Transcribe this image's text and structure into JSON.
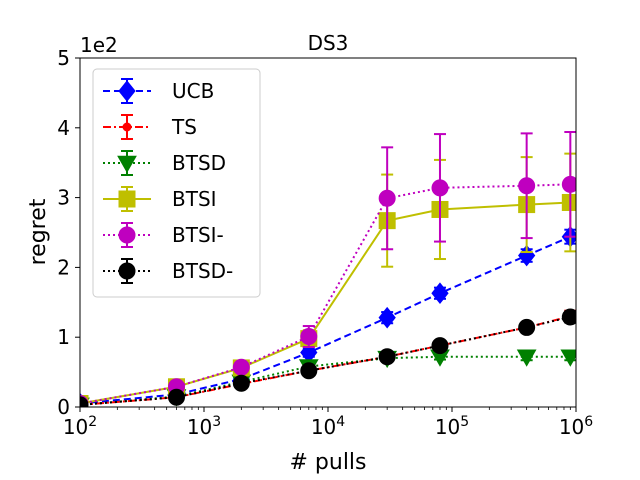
{
  "chart_data": {
    "type": "line",
    "title": "DS3",
    "xlabel": "# pulls",
    "ylabel": "regret",
    "x_scale": "log",
    "xlim": [
      100,
      1000000
    ],
    "ylim": [
      0,
      5
    ],
    "y_multiplier_label": "1e2",
    "x_ticks": [
      {
        "value": 100,
        "base": "10",
        "exp": "2"
      },
      {
        "value": 1000,
        "base": "10",
        "exp": "3"
      },
      {
        "value": 10000,
        "base": "10",
        "exp": "4"
      },
      {
        "value": 100000,
        "base": "10",
        "exp": "5"
      },
      {
        "value": 1000000,
        "base": "10",
        "exp": "6"
      }
    ],
    "y_ticks": [
      {
        "value": 0,
        "label": "0"
      },
      {
        "value": 1,
        "label": "1"
      },
      {
        "value": 2,
        "label": "2"
      },
      {
        "value": 3,
        "label": "3"
      },
      {
        "value": 4,
        "label": "4"
      },
      {
        "value": 5,
        "label": "5"
      }
    ],
    "legend_position": "top-left",
    "x": [
      100,
      600,
      2000,
      7000,
      30000,
      80000,
      400000,
      900000
    ],
    "series": [
      {
        "name": "UCB",
        "color": "#0000ff",
        "dash": "dashed",
        "marker": "diamond",
        "values": [
          0.05,
          0.18,
          0.4,
          0.78,
          1.28,
          1.63,
          2.17,
          2.44
        ],
        "errors": [
          0.01,
          0.02,
          0.03,
          0.06,
          0.08,
          0.08,
          0.09,
          0.1
        ]
      },
      {
        "name": "TS",
        "color": "#ff0000",
        "dash": "dashdot",
        "marker": "small-circle",
        "values": [
          0.03,
          0.14,
          0.33,
          0.52,
          0.72,
          0.88,
          1.14,
          1.3
        ],
        "errors": [
          0.01,
          0.02,
          0.03,
          0.05,
          0.06,
          0.07,
          0.07,
          0.08
        ]
      },
      {
        "name": "BTSD",
        "color": "#008000",
        "dash": "dotted",
        "marker": "triangle-down",
        "values": [
          0.03,
          0.15,
          0.36,
          0.58,
          0.7,
          0.72,
          0.72,
          0.72
        ],
        "errors": [
          0.01,
          0.02,
          0.03,
          0.04,
          0.04,
          0.04,
          0.05,
          0.05
        ]
      },
      {
        "name": "BTSI",
        "color": "#bfbf00",
        "dash": "solid",
        "marker": "square",
        "values": [
          0.05,
          0.29,
          0.56,
          0.98,
          2.67,
          2.83,
          2.9,
          2.93
        ],
        "errors": [
          0.02,
          0.03,
          0.05,
          0.12,
          0.66,
          0.71,
          0.68,
          0.7
        ]
      },
      {
        "name": "BTSI-",
        "color": "#bf00bf",
        "dash": "dotted",
        "marker": "circle",
        "values": [
          0.05,
          0.29,
          0.57,
          1.01,
          2.99,
          3.14,
          3.17,
          3.19
        ],
        "errors": [
          0.02,
          0.03,
          0.05,
          0.15,
          0.73,
          0.77,
          0.75,
          0.75
        ]
      },
      {
        "name": "BTSD-",
        "color": "#000000",
        "dash": "dotted",
        "marker": "circle",
        "values": [
          0.03,
          0.14,
          0.34,
          0.52,
          0.72,
          0.88,
          1.14,
          1.29
        ],
        "errors": [
          0.01,
          0.02,
          0.03,
          0.05,
          0.06,
          0.06,
          0.07,
          0.08
        ]
      }
    ]
  }
}
